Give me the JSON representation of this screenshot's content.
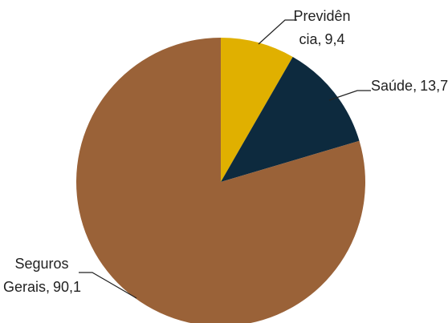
{
  "chart_data": {
    "type": "pie",
    "categories": [
      "Previdência",
      "Saúde",
      "Seguros Gerais"
    ],
    "values": [
      9.4,
      13.7,
      90.1
    ],
    "value_labels": [
      "9,4",
      "13,7",
      "90,1"
    ],
    "separator": ",",
    "colors": [
      "#e0b000",
      "#0d2a3e",
      "#9a6238"
    ]
  }
}
